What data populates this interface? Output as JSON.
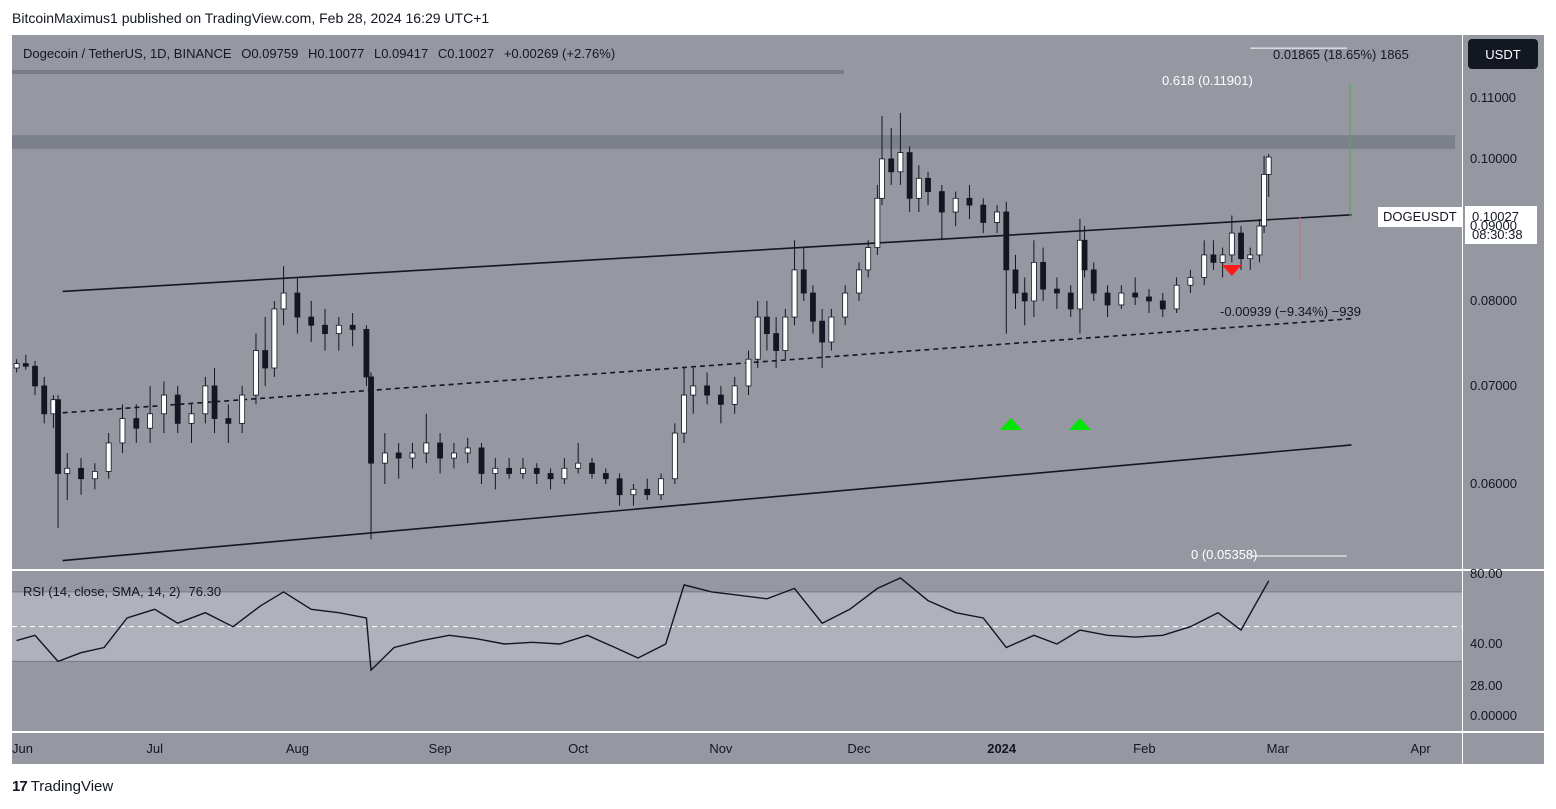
{
  "publisher": "BitcoinMaximus1 published on TradingView.com, Feb 28, 2024 16:29 UTC+1",
  "header": {
    "symbol": "Dogecoin / TetherUS, 1D, BINANCE",
    "open_label": "O",
    "open": "0.09759",
    "high_label": "H",
    "high": "0.10077",
    "low_label": "L",
    "low": "0.09417",
    "close_label": "C",
    "close": "0.10027",
    "change": "+0.00269 (+2.76%)"
  },
  "currency_button": "USDT",
  "price_tag": {
    "symbol": "DOGEUSDT",
    "price": "0.10027",
    "countdown": "08:30:38"
  },
  "measure_top": "0.01865 (18.65%) 1865",
  "measure_mid": "-0.00939 (−9.34%) −939",
  "fib": {
    "top": "0.618 (0.11901)",
    "bottom": "0 (0.05358)"
  },
  "rsi": {
    "label": "RSI (14, close, SMA, 14, 2)",
    "value": "76.30"
  },
  "brand": "TradingView",
  "colors": {
    "pane": "#9598a1",
    "candle": "#ffffff",
    "wick": "#131722",
    "up_marker": "#00e600",
    "down_marker": "#ff1a1a",
    "fib_line": "#ffffff",
    "measure_green": "#4caf50"
  },
  "chart_data": [
    {
      "type": "candlestick",
      "title": "Dogecoin / TetherUS, 1D, BINANCE",
      "x_ticks": [
        "Jun",
        "Jul",
        "Aug",
        "Sep",
        "Oct",
        "Nov",
        "Dec",
        "2024",
        "Feb",
        "Mar",
        "Apr"
      ],
      "y_ticks": [
        "0.11000",
        "0.10000",
        "0.09000",
        "0.08000",
        "0.07000",
        "0.06000"
      ],
      "y_scale": "log",
      "ylim": [
        0.0525,
        0.1215
      ],
      "xlim": [
        "2023-05-31",
        "2024-04-10"
      ],
      "channel": {
        "upper": [
          [
            "2023-06-11",
            0.0812
          ],
          [
            "2024-03-17",
            0.0916
          ]
        ],
        "middle": [
          [
            "2023-06-11",
            0.0671
          ],
          [
            "2024-03-17",
            0.0778
          ]
        ],
        "lower": [
          [
            "2023-06-11",
            0.0532
          ],
          [
            "2024-03-17",
            0.0638
          ]
        ]
      },
      "resistance_zone": [
        0.1016,
        0.1038
      ],
      "fibonacci": {
        "0.618": 0.11901,
        "0": 0.05358
      },
      "markers": [
        {
          "type": "up",
          "date": "2024-01-03"
        },
        {
          "type": "up",
          "date": "2024-01-18"
        },
        {
          "type": "down",
          "date": "2024-02-20"
        }
      ],
      "ohlc": [
        [
          "2023-06-01",
          0.072,
          0.073,
          0.0715,
          0.0725
        ],
        [
          "2023-06-03",
          0.0725,
          0.0735,
          0.0718,
          0.0722
        ],
        [
          "2023-06-05",
          0.0722,
          0.0728,
          0.069,
          0.07
        ],
        [
          "2023-06-07",
          0.07,
          0.071,
          0.066,
          0.067
        ],
        [
          "2023-06-09",
          0.067,
          0.069,
          0.0655,
          0.0685
        ],
        [
          "2023-06-10",
          0.0685,
          0.069,
          0.056,
          0.061
        ],
        [
          "2023-06-12",
          0.061,
          0.063,
          0.0585,
          0.0615
        ],
        [
          "2023-06-15",
          0.0615,
          0.0625,
          0.059,
          0.0605
        ],
        [
          "2023-06-18",
          0.0605,
          0.062,
          0.0595,
          0.0612
        ],
        [
          "2023-06-21",
          0.0612,
          0.065,
          0.0605,
          0.064
        ],
        [
          "2023-06-24",
          0.064,
          0.068,
          0.063,
          0.0665
        ],
        [
          "2023-06-27",
          0.0665,
          0.068,
          0.064,
          0.0655
        ],
        [
          "2023-06-30",
          0.0655,
          0.07,
          0.064,
          0.067
        ],
        [
          "2023-07-03",
          0.067,
          0.0705,
          0.065,
          0.069
        ],
        [
          "2023-07-06",
          0.069,
          0.07,
          0.065,
          0.066
        ],
        [
          "2023-07-09",
          0.066,
          0.068,
          0.064,
          0.067
        ],
        [
          "2023-07-12",
          0.067,
          0.071,
          0.066,
          0.07
        ],
        [
          "2023-07-14",
          0.07,
          0.072,
          0.065,
          0.0665
        ],
        [
          "2023-07-17",
          0.0665,
          0.068,
          0.064,
          0.066
        ],
        [
          "2023-07-20",
          0.066,
          0.07,
          0.065,
          0.069
        ],
        [
          "2023-07-23",
          0.069,
          0.076,
          0.068,
          0.074
        ],
        [
          "2023-07-25",
          0.074,
          0.078,
          0.07,
          0.072
        ],
        [
          "2023-07-27",
          0.072,
          0.08,
          0.071,
          0.079
        ],
        [
          "2023-07-29",
          0.079,
          0.0845,
          0.077,
          0.081
        ],
        [
          "2023-08-01",
          0.081,
          0.083,
          0.076,
          0.078
        ],
        [
          "2023-08-04",
          0.078,
          0.08,
          0.075,
          0.077
        ],
        [
          "2023-08-07",
          0.077,
          0.079,
          0.074,
          0.076
        ],
        [
          "2023-08-10",
          0.076,
          0.078,
          0.074,
          0.077
        ],
        [
          "2023-08-13",
          0.077,
          0.0785,
          0.0745,
          0.0765
        ],
        [
          "2023-08-16",
          0.0765,
          0.077,
          0.07,
          0.071
        ],
        [
          "2023-08-17",
          0.071,
          0.0715,
          0.055,
          0.062
        ],
        [
          "2023-08-20",
          0.062,
          0.065,
          0.06,
          0.063
        ],
        [
          "2023-08-23",
          0.063,
          0.064,
          0.0605,
          0.0625
        ],
        [
          "2023-08-26",
          0.0625,
          0.064,
          0.0615,
          0.063
        ],
        [
          "2023-08-29",
          0.063,
          0.067,
          0.062,
          0.064
        ],
        [
          "2023-09-01",
          0.064,
          0.065,
          0.061,
          0.0625
        ],
        [
          "2023-09-04",
          0.0625,
          0.064,
          0.0615,
          0.063
        ],
        [
          "2023-09-07",
          0.063,
          0.0645,
          0.062,
          0.0635
        ],
        [
          "2023-09-10",
          0.0635,
          0.064,
          0.06,
          0.061
        ],
        [
          "2023-09-13",
          0.061,
          0.0625,
          0.0595,
          0.0615
        ],
        [
          "2023-09-16",
          0.0615,
          0.0625,
          0.0605,
          0.061
        ],
        [
          "2023-09-19",
          0.061,
          0.0625,
          0.0605,
          0.0615
        ],
        [
          "2023-09-22",
          0.0615,
          0.062,
          0.06,
          0.061
        ],
        [
          "2023-09-25",
          0.061,
          0.0615,
          0.0595,
          0.0605
        ],
        [
          "2023-09-28",
          0.0605,
          0.0625,
          0.06,
          0.0615
        ],
        [
          "2023-10-01",
          0.0615,
          0.064,
          0.061,
          0.062
        ],
        [
          "2023-10-04",
          0.062,
          0.0625,
          0.0605,
          0.061
        ],
        [
          "2023-10-07",
          0.061,
          0.0615,
          0.06,
          0.0605
        ],
        [
          "2023-10-10",
          0.0605,
          0.061,
          0.058,
          0.059
        ],
        [
          "2023-10-13",
          0.059,
          0.06,
          0.058,
          0.0595
        ],
        [
          "2023-10-16",
          0.0595,
          0.0605,
          0.0585,
          0.059
        ],
        [
          "2023-10-19",
          0.059,
          0.061,
          0.0585,
          0.0605
        ],
        [
          "2023-10-22",
          0.0605,
          0.066,
          0.06,
          0.065
        ],
        [
          "2023-10-24",
          0.065,
          0.072,
          0.064,
          0.069
        ],
        [
          "2023-10-26",
          0.069,
          0.072,
          0.067,
          0.07
        ],
        [
          "2023-10-29",
          0.07,
          0.0715,
          0.068,
          0.069
        ],
        [
          "2023-11-01",
          0.069,
          0.07,
          0.066,
          0.068
        ],
        [
          "2023-11-04",
          0.068,
          0.071,
          0.067,
          0.07
        ],
        [
          "2023-11-07",
          0.07,
          0.074,
          0.069,
          0.073
        ],
        [
          "2023-11-09",
          0.073,
          0.08,
          0.072,
          0.078
        ],
        [
          "2023-11-11",
          0.078,
          0.08,
          0.074,
          0.076
        ],
        [
          "2023-11-13",
          0.076,
          0.078,
          0.072,
          0.074
        ],
        [
          "2023-11-15",
          0.074,
          0.079,
          0.073,
          0.078
        ],
        [
          "2023-11-17",
          0.078,
          0.088,
          0.077,
          0.084
        ],
        [
          "2023-11-19",
          0.084,
          0.087,
          0.08,
          0.081
        ],
        [
          "2023-11-21",
          0.081,
          0.082,
          0.076,
          0.0775
        ],
        [
          "2023-11-23",
          0.0775,
          0.079,
          0.072,
          0.075
        ],
        [
          "2023-11-25",
          0.075,
          0.079,
          0.074,
          0.078
        ],
        [
          "2023-11-28",
          0.078,
          0.082,
          0.077,
          0.081
        ],
        [
          "2023-12-01",
          0.081,
          0.085,
          0.08,
          0.084
        ],
        [
          "2023-12-03",
          0.084,
          0.088,
          0.083,
          0.087
        ],
        [
          "2023-12-05",
          0.087,
          0.096,
          0.086,
          0.094
        ],
        [
          "2023-12-06",
          0.094,
          0.107,
          0.093,
          0.1
        ],
        [
          "2023-12-08",
          0.1,
          0.105,
          0.096,
          0.098
        ],
        [
          "2023-12-10",
          0.098,
          0.1075,
          0.096,
          0.101
        ],
        [
          "2023-12-12",
          0.101,
          0.102,
          0.092,
          0.094
        ],
        [
          "2023-12-14",
          0.094,
          0.099,
          0.092,
          0.097
        ],
        [
          "2023-12-16",
          0.097,
          0.098,
          0.093,
          0.095
        ],
        [
          "2023-12-19",
          0.095,
          0.096,
          0.088,
          0.092
        ],
        [
          "2023-12-22",
          0.092,
          0.095,
          0.09,
          0.094
        ],
        [
          "2023-12-25",
          0.094,
          0.096,
          0.091,
          0.093
        ],
        [
          "2023-12-28",
          0.093,
          0.094,
          0.089,
          0.0905
        ],
        [
          "2023-12-31",
          0.0905,
          0.093,
          0.089,
          0.092
        ],
        [
          "2024-01-02",
          0.092,
          0.0935,
          0.076,
          0.084
        ],
        [
          "2024-01-04",
          0.084,
          0.086,
          0.079,
          0.081
        ],
        [
          "2024-01-06",
          0.081,
          0.083,
          0.077,
          0.08
        ],
        [
          "2024-01-08",
          0.08,
          0.088,
          0.078,
          0.085
        ],
        [
          "2024-01-10",
          0.085,
          0.087,
          0.08,
          0.0815
        ],
        [
          "2024-01-13",
          0.0815,
          0.083,
          0.079,
          0.081
        ],
        [
          "2024-01-16",
          0.081,
          0.082,
          0.078,
          0.079
        ],
        [
          "2024-01-18",
          0.079,
          0.091,
          0.076,
          0.088
        ],
        [
          "2024-01-19",
          0.088,
          0.09,
          0.083,
          0.084
        ],
        [
          "2024-01-21",
          0.084,
          0.085,
          0.08,
          0.081
        ],
        [
          "2024-01-24",
          0.081,
          0.082,
          0.078,
          0.0795
        ],
        [
          "2024-01-27",
          0.0795,
          0.082,
          0.079,
          0.081
        ],
        [
          "2024-01-30",
          0.081,
          0.083,
          0.0795,
          0.0805
        ],
        [
          "2024-02-02",
          0.0805,
          0.0815,
          0.0785,
          0.08
        ],
        [
          "2024-02-05",
          0.08,
          0.081,
          0.078,
          0.079
        ],
        [
          "2024-02-08",
          0.079,
          0.083,
          0.0785,
          0.082
        ],
        [
          "2024-02-11",
          0.082,
          0.084,
          0.081,
          0.083
        ],
        [
          "2024-02-14",
          0.083,
          0.088,
          0.082,
          0.086
        ],
        [
          "2024-02-16",
          0.086,
          0.088,
          0.084,
          0.085
        ],
        [
          "2024-02-18",
          0.085,
          0.087,
          0.083,
          0.086
        ],
        [
          "2024-02-20",
          0.086,
          0.0915,
          0.085,
          0.089
        ],
        [
          "2024-02-22",
          0.089,
          0.09,
          0.084,
          0.0855
        ],
        [
          "2024-02-24",
          0.0855,
          0.087,
          0.084,
          0.086
        ],
        [
          "2024-02-26",
          0.086,
          0.091,
          0.085,
          0.09
        ],
        [
          "2024-02-27",
          0.09,
          0.1005,
          0.089,
          0.0976
        ],
        [
          "2024-02-28",
          0.0976,
          0.1008,
          0.0942,
          0.1003
        ]
      ]
    },
    {
      "type": "line",
      "title": "RSI (14, close, SMA, 14, 2)",
      "y_ticks": [
        "80.00",
        "40.00",
        "28.00",
        "0.00000"
      ],
      "ylim": [
        -10,
        82
      ],
      "band": [
        30,
        70
      ],
      "midline": 50,
      "x": [
        "2023-06-01",
        "2023-06-05",
        "2023-06-10",
        "2023-06-15",
        "2023-06-20",
        "2023-06-25",
        "2023-07-01",
        "2023-07-06",
        "2023-07-12",
        "2023-07-18",
        "2023-07-24",
        "2023-07-29",
        "2023-08-04",
        "2023-08-10",
        "2023-08-16",
        "2023-08-17",
        "2023-08-22",
        "2023-08-28",
        "2023-09-03",
        "2023-09-09",
        "2023-09-15",
        "2023-09-21",
        "2023-09-27",
        "2023-10-03",
        "2023-10-09",
        "2023-10-14",
        "2023-10-20",
        "2023-10-24",
        "2023-10-30",
        "2023-11-05",
        "2023-11-11",
        "2023-11-17",
        "2023-11-23",
        "2023-11-29",
        "2023-12-05",
        "2023-12-10",
        "2023-12-16",
        "2023-12-22",
        "2023-12-28",
        "2024-01-02",
        "2024-01-08",
        "2024-01-13",
        "2024-01-18",
        "2024-01-24",
        "2024-01-30",
        "2024-02-05",
        "2024-02-11",
        "2024-02-17",
        "2024-02-22",
        "2024-02-28"
      ],
      "values": [
        42,
        45,
        30,
        35,
        38,
        55,
        60,
        52,
        58,
        50,
        62,
        70,
        60,
        58,
        55,
        25,
        38,
        42,
        45,
        43,
        40,
        41,
        40,
        45,
        38,
        32,
        40,
        74,
        70,
        68,
        66,
        72,
        52,
        60,
        72,
        78,
        65,
        58,
        55,
        38,
        45,
        40,
        48,
        45,
        44,
        45,
        50,
        58,
        48,
        76.3
      ]
    }
  ]
}
